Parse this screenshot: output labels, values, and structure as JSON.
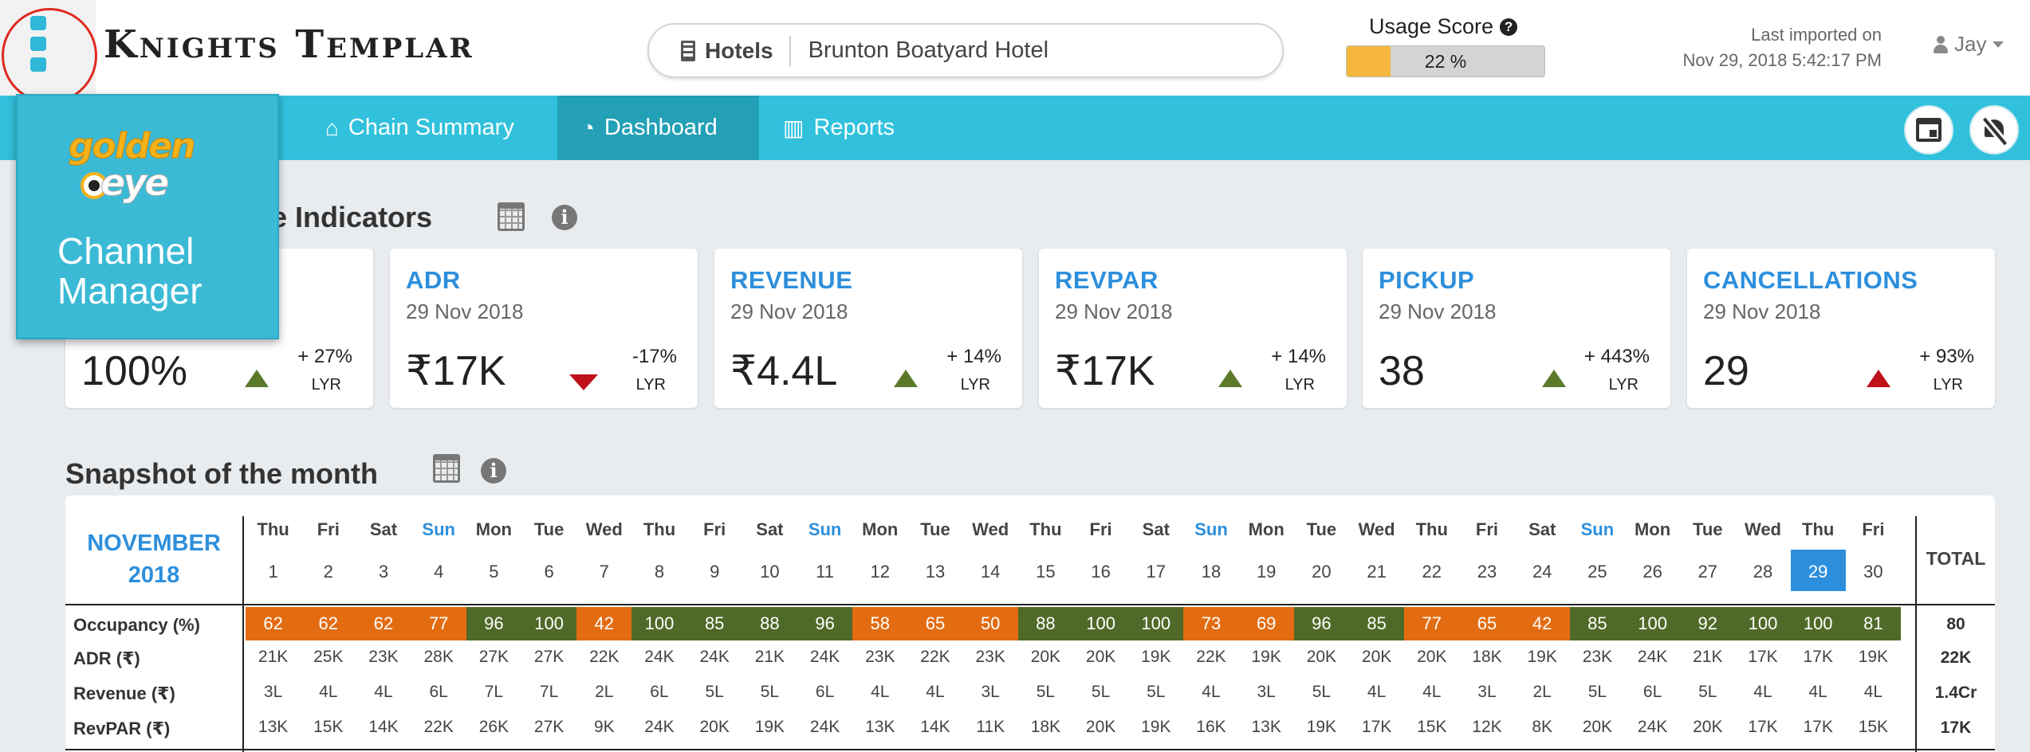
{
  "header": {
    "brand": "Knights Templar",
    "search": {
      "category": "Hotels",
      "value": "Brunton Boatyard Hotel"
    },
    "usage": {
      "title": "Usage Score",
      "value_label": "22 %",
      "fraction": 0.22
    },
    "import": {
      "line1": "Last imported on",
      "line2": "Nov 29, 2018 5:42:17 PM"
    },
    "user": "Jay"
  },
  "nav": {
    "items": [
      {
        "label": "Chain Summary",
        "icon": "home-icon"
      },
      {
        "label": "Dashboard",
        "icon": "dashboard-icon",
        "active": true
      },
      {
        "label": "Reports",
        "icon": "bar-chart-icon"
      }
    ]
  },
  "popup": {
    "logo_top": "golden",
    "logo_bottom": "eye",
    "title_line1": "Channel",
    "title_line2": "Manager"
  },
  "kpi_section": {
    "title": "ce Indicators"
  },
  "kpis": [
    {
      "title": "",
      "date": "",
      "value": "100%",
      "change": "+ 27%",
      "lyr": "LYR",
      "trend": "up-green"
    },
    {
      "title": "ADR",
      "date": "29 Nov 2018",
      "value": "₹17K",
      "change": "-17%",
      "lyr": "LYR",
      "trend": "down-red"
    },
    {
      "title": "REVENUE",
      "date": "29 Nov 2018",
      "value": "₹4.4L",
      "change": "+ 14%",
      "lyr": "LYR",
      "trend": "up-green"
    },
    {
      "title": "REVPAR",
      "date": "29 Nov 2018",
      "value": "₹17K",
      "change": "+ 14%",
      "lyr": "LYR",
      "trend": "up-green"
    },
    {
      "title": "PICKUP",
      "date": "29 Nov 2018",
      "value": "38",
      "change": "+ 443%",
      "lyr": "LYR",
      "trend": "up-green"
    },
    {
      "title": "CANCELLATIONS",
      "date": "29 Nov 2018",
      "value": "29",
      "change": "+ 93%",
      "lyr": "LYR",
      "trend": "up-red"
    }
  ],
  "snapshot": {
    "title": "Snapshot of the month",
    "month": "NOVEMBER",
    "year": "2018",
    "total_label": "TOTAL",
    "today": 29,
    "days": [
      "Thu",
      "Fri",
      "Sat",
      "Sun",
      "Mon",
      "Tue",
      "Wed",
      "Thu",
      "Fri",
      "Sat",
      "Sun",
      "Mon",
      "Tue",
      "Wed",
      "Thu",
      "Fri",
      "Sat",
      "Sun",
      "Mon",
      "Tue",
      "Wed",
      "Thu",
      "Fri",
      "Sat",
      "Sun",
      "Mon",
      "Tue",
      "Wed",
      "Thu",
      "Fri"
    ],
    "dates": [
      "1",
      "2",
      "3",
      "4",
      "5",
      "6",
      "7",
      "8",
      "9",
      "10",
      "11",
      "12",
      "13",
      "14",
      "15",
      "16",
      "17",
      "18",
      "19",
      "20",
      "21",
      "22",
      "23",
      "24",
      "25",
      "26",
      "27",
      "28",
      "29",
      "30"
    ],
    "rows": [
      {
        "label": "Occupancy (%)",
        "occupancy": true,
        "values": [
          "62",
          "62",
          "62",
          "77",
          "96",
          "100",
          "42",
          "100",
          "85",
          "88",
          "96",
          "58",
          "65",
          "50",
          "88",
          "100",
          "100",
          "73",
          "69",
          "96",
          "85",
          "77",
          "65",
          "42",
          "85",
          "100",
          "92",
          "100",
          "100",
          "81"
        ],
        "colors": [
          "o",
          "o",
          "o",
          "o",
          "g",
          "g",
          "o",
          "g",
          "g",
          "g",
          "g",
          "o",
          "o",
          "o",
          "g",
          "g",
          "g",
          "o",
          "o",
          "g",
          "g",
          "o",
          "o",
          "o",
          "g",
          "g",
          "g",
          "g",
          "g",
          "g"
        ],
        "total": "80"
      },
      {
        "label": "ADR (₹)",
        "values": [
          "21K",
          "25K",
          "23K",
          "28K",
          "27K",
          "27K",
          "22K",
          "24K",
          "24K",
          "21K",
          "24K",
          "23K",
          "22K",
          "23K",
          "20K",
          "20K",
          "19K",
          "22K",
          "19K",
          "20K",
          "20K",
          "20K",
          "18K",
          "19K",
          "23K",
          "24K",
          "21K",
          "17K",
          "17K",
          "19K"
        ],
        "total": "22K"
      },
      {
        "label": "Revenue (₹)",
        "values": [
          "3L",
          "4L",
          "4L",
          "6L",
          "7L",
          "7L",
          "2L",
          "6L",
          "5L",
          "5L",
          "6L",
          "4L",
          "4L",
          "3L",
          "5L",
          "5L",
          "5L",
          "4L",
          "3L",
          "5L",
          "4L",
          "4L",
          "3L",
          "2L",
          "5L",
          "6L",
          "5L",
          "4L",
          "4L",
          "4L"
        ],
        "total": "1.4Cr"
      },
      {
        "label": "RevPAR (₹)",
        "values": [
          "13K",
          "15K",
          "14K",
          "22K",
          "26K",
          "27K",
          "9K",
          "24K",
          "20K",
          "19K",
          "24K",
          "13K",
          "14K",
          "11K",
          "18K",
          "20K",
          "19K",
          "16K",
          "13K",
          "19K",
          "17K",
          "15K",
          "12K",
          "8K",
          "20K",
          "24K",
          "20K",
          "17K",
          "17K",
          "15K"
        ],
        "total": "17K"
      }
    ]
  }
}
